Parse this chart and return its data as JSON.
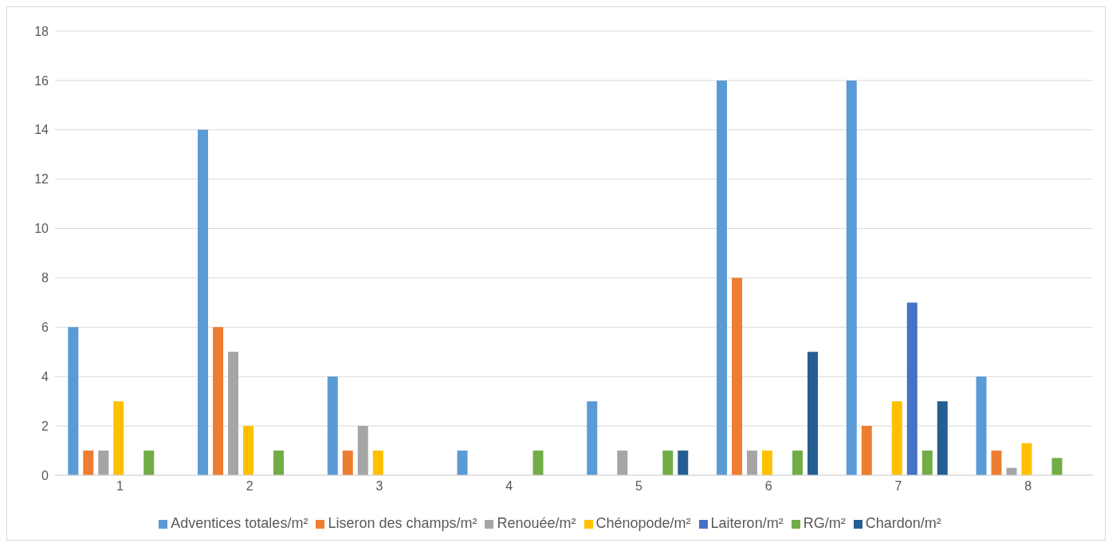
{
  "chart_data": {
    "type": "bar",
    "categories": [
      "1",
      "2",
      "3",
      "4",
      "5",
      "6",
      "7",
      "8"
    ],
    "series": [
      {
        "name": "Adventices totales/m²",
        "color": "#5b9bd5",
        "values": [
          6,
          14,
          4,
          1,
          3,
          16,
          16,
          4
        ]
      },
      {
        "name": "Liseron des champs/m²",
        "color": "#ed7d31",
        "values": [
          1,
          6,
          1,
          null,
          null,
          8,
          2,
          1
        ]
      },
      {
        "name": "Renouée/m²",
        "color": "#a5a5a5",
        "values": [
          1,
          5,
          2,
          null,
          1,
          1,
          null,
          0.3
        ]
      },
      {
        "name": "Chénopode/m²",
        "color": "#ffc000",
        "values": [
          3,
          2,
          1,
          null,
          null,
          1,
          3,
          1.3
        ]
      },
      {
        "name": "Laiteron/m²",
        "color": "#4472c4",
        "values": [
          null,
          null,
          null,
          null,
          null,
          null,
          7,
          null
        ]
      },
      {
        "name": "RG/m²",
        "color": "#70ad47",
        "values": [
          1,
          1,
          null,
          1,
          1,
          1,
          1,
          0.7
        ]
      },
      {
        "name": "Chardon/m²",
        "color": "#255e91",
        "values": [
          null,
          null,
          null,
          null,
          1,
          5,
          3,
          null
        ]
      }
    ],
    "ylim": [
      0,
      18
    ],
    "yticks": [
      0,
      2,
      4,
      6,
      8,
      10,
      12,
      14,
      16,
      18
    ],
    "grid": "y",
    "legend": "bottom"
  }
}
